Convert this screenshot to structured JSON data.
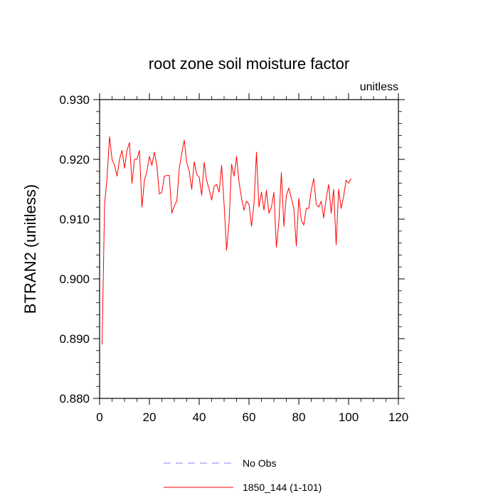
{
  "chart_data": {
    "type": "line",
    "title": "root zone soil moisture factor",
    "units_label": "unitless",
    "xlabel": "",
    "ylabel": "BTRAN2  (unitless)",
    "xlim": [
      0,
      120
    ],
    "ylim": [
      0.88,
      0.93
    ],
    "xticks": [
      0,
      20,
      40,
      60,
      80,
      100,
      120
    ],
    "xtick_labels": [
      "0",
      "20",
      "40",
      "60",
      "80",
      "100",
      "120"
    ],
    "yticks": [
      0.88,
      0.89,
      0.9,
      0.91,
      0.92,
      0.93
    ],
    "ytick_labels": [
      "0.880",
      "0.890",
      "0.900",
      "0.910",
      "0.920",
      "0.930"
    ],
    "grid": false,
    "legend_position": "bottom",
    "legend": [
      {
        "name": "No Obs",
        "style": "dashed",
        "color": "#8080ff"
      },
      {
        "name": "1850_144 (1-101)",
        "style": "solid",
        "color": "#ff0000"
      }
    ],
    "series": [
      {
        "name": "1850_144 (1-101)",
        "color": "#ff0000",
        "x": [
          1,
          2,
          3,
          4,
          5,
          6,
          7,
          8,
          9,
          10,
          11,
          12,
          13,
          14,
          15,
          16,
          17,
          18,
          19,
          20,
          21,
          22,
          23,
          24,
          25,
          26,
          27,
          28,
          29,
          30,
          31,
          32,
          33,
          34,
          35,
          36,
          37,
          38,
          39,
          40,
          41,
          42,
          43,
          44,
          45,
          46,
          47,
          48,
          49,
          50,
          51,
          52,
          53,
          54,
          55,
          56,
          57,
          58,
          59,
          60,
          61,
          62,
          63,
          64,
          65,
          66,
          67,
          68,
          69,
          70,
          71,
          72,
          73,
          74,
          75,
          76,
          77,
          78,
          79,
          80,
          81,
          82,
          83,
          84,
          85,
          86,
          87,
          88,
          89,
          90,
          91,
          92,
          93,
          94,
          95,
          96,
          97,
          98,
          99,
          100,
          101
        ],
        "y": [
          0.889,
          0.9125,
          0.917,
          0.9238,
          0.92,
          0.919,
          0.9172,
          0.92,
          0.9215,
          0.9185,
          0.9215,
          0.9228,
          0.916,
          0.92,
          0.92,
          0.9215,
          0.912,
          0.9165,
          0.918,
          0.9205,
          0.919,
          0.9212,
          0.919,
          0.9142,
          0.9145,
          0.9172,
          0.9173,
          0.9173,
          0.911,
          0.9122,
          0.913,
          0.9185,
          0.921,
          0.9232,
          0.9195,
          0.918,
          0.915,
          0.9196,
          0.9175,
          0.917,
          0.914,
          0.9195,
          0.9165,
          0.915,
          0.9132,
          0.9155,
          0.9158,
          0.9145,
          0.919,
          0.9125,
          0.9048,
          0.9095,
          0.9192,
          0.9172,
          0.9205,
          0.9162,
          0.9135,
          0.9115,
          0.913,
          0.9125,
          0.9088,
          0.9125,
          0.9212,
          0.912,
          0.9145,
          0.9115,
          0.9148,
          0.911,
          0.912,
          0.9145,
          0.9053,
          0.9095,
          0.9178,
          0.9088,
          0.914,
          0.9152,
          0.9135,
          0.9118,
          0.9055,
          0.9135,
          0.9098,
          0.909,
          0.9118,
          0.9118,
          0.9148,
          0.9168,
          0.9125,
          0.912,
          0.913,
          0.9102,
          0.9135,
          0.9158,
          0.911,
          0.915,
          0.9057,
          0.915,
          0.9118,
          0.9138,
          0.9165,
          0.916,
          0.9168
        ]
      }
    ]
  }
}
